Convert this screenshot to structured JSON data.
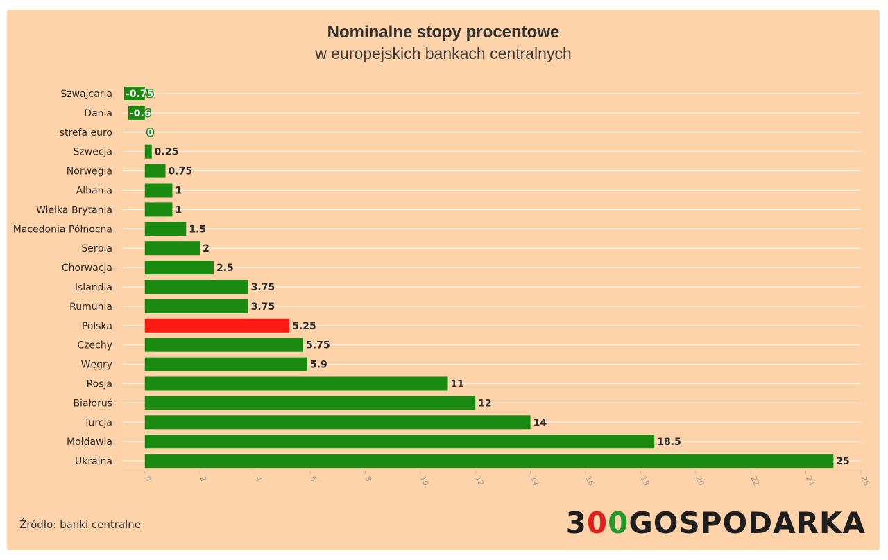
{
  "colors": {
    "background": "#ffd3a9",
    "bar": "#1a8a10",
    "highlight": "#ff1a14",
    "grid": "#ffffff"
  },
  "chart_data": {
    "type": "bar",
    "orientation": "horizontal",
    "title": "Nominalne stopy procentowe",
    "subtitle": "w europejskich bankach centralnych",
    "categories": [
      "Szwajcaria",
      "Dania",
      "strefa euro",
      "Szwecja",
      "Norwegia",
      "Albania",
      "Wielka Brytania",
      "Macedonia Północna",
      "Serbia",
      "Chorwacja",
      "Islandia",
      "Rumunia",
      "Polska",
      "Czechy",
      "Węgry",
      "Rosja",
      "Białoruś",
      "Turcja",
      "Mołdawia",
      "Ukraina"
    ],
    "values": [
      -0.75,
      -0.6,
      0,
      0.25,
      0.75,
      1,
      1,
      1.5,
      2,
      2.5,
      3.75,
      3.75,
      5.25,
      5.75,
      5.9,
      11,
      12,
      14,
      18.5,
      25
    ],
    "value_labels": [
      "-0.75",
      "-0.6",
      "0",
      "0.25",
      "0.75",
      "1",
      "1",
      "1.5",
      "2",
      "2.5",
      "3.75",
      "3.75",
      "5.25",
      "5.75",
      "5.9",
      "11",
      "12",
      "14",
      "18.5",
      "25"
    ],
    "highlight_category": "Polska",
    "xlim": [
      -0.8,
      26
    ],
    "x_ticks": [
      "0",
      "2",
      "4",
      "6",
      "8",
      "10",
      "12",
      "14",
      "16",
      "18",
      "20",
      "22",
      "24",
      "26"
    ],
    "grid": true,
    "legend": "none"
  },
  "footer": {
    "source": "Źródło: banki centralne",
    "logo": {
      "part1": "3",
      "part2": "0",
      "part3": "0",
      "part4": "GOSPODARKA"
    }
  }
}
